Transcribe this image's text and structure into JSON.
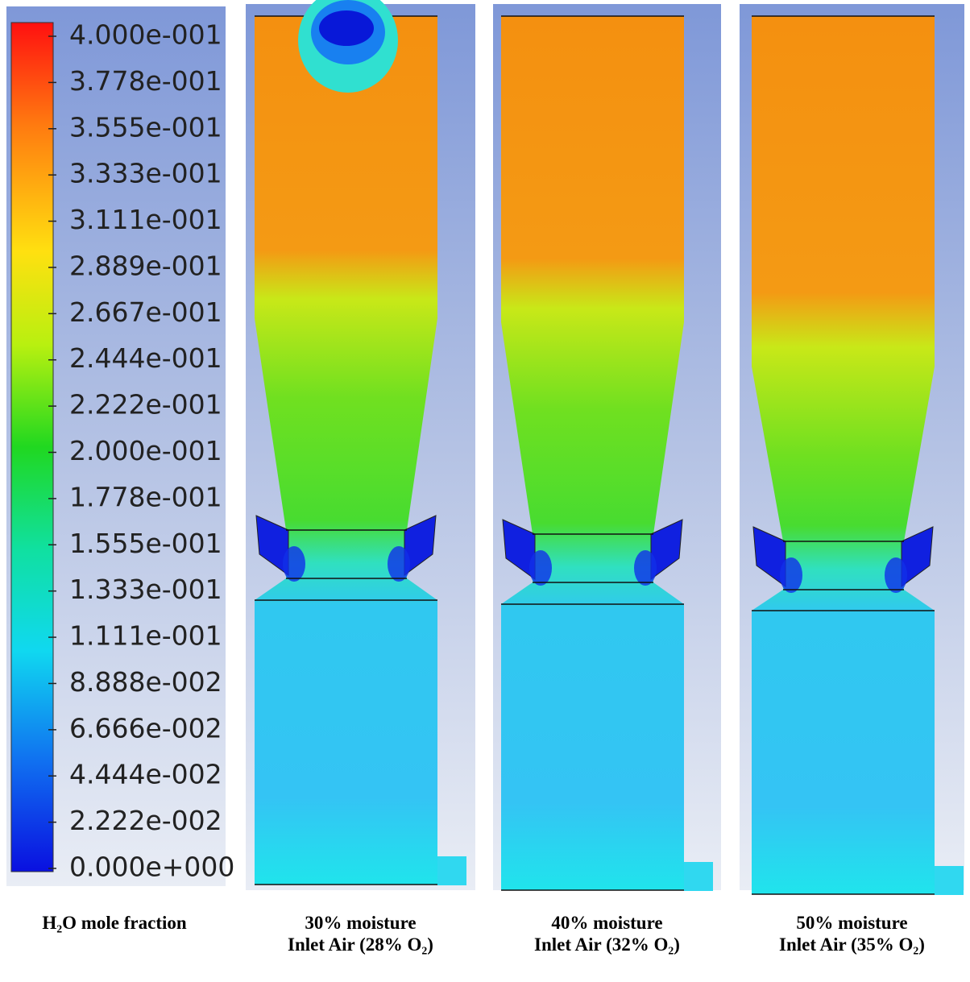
{
  "colorbar": {
    "ticks": [
      "4.000e-001",
      "3.778e-001",
      "3.555e-001",
      "3.333e-001",
      "3.111e-001",
      "2.889e-001",
      "2.667e-001",
      "2.444e-001",
      "2.222e-001",
      "2.000e-001",
      "1.778e-001",
      "1.555e-001",
      "1.333e-001",
      "1.111e-001",
      "8.888e-002",
      "6.666e-002",
      "4.444e-002",
      "2.222e-002",
      "0.000e+000"
    ],
    "caption": "H₂O mole fraction"
  },
  "panels": [
    {
      "title": "30% moisture",
      "subtitle": "Inlet Air (28% O₂)"
    },
    {
      "title": "40% moisture",
      "subtitle": "Inlet Air (32% O₂)"
    },
    {
      "title": "50% moisture",
      "subtitle": "Inlet Air (35% O₂)"
    }
  ]
}
